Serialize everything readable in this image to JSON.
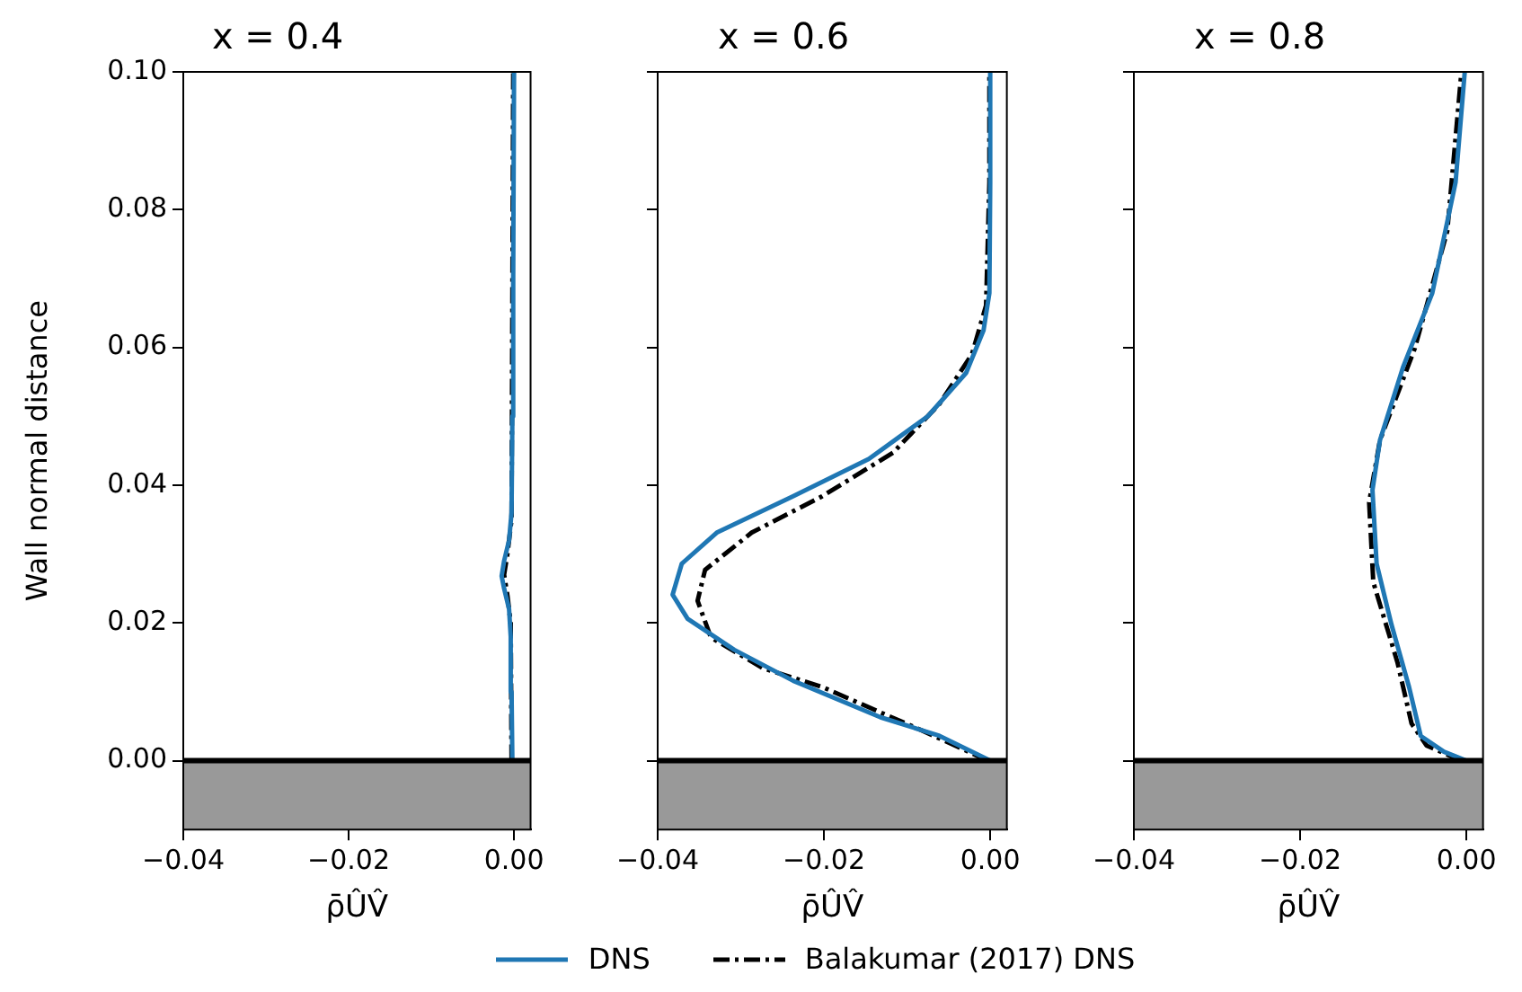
{
  "chart_data": [
    {
      "type": "line",
      "title": "x = 0.4",
      "xlabel": "ρ̄ÛV̂",
      "ylabel": "Wall normal distance",
      "xlim": [
        -0.04,
        0.002
      ],
      "ylim": [
        -0.01,
        0.1
      ],
      "xticks": [
        {
          "value": -0.04,
          "label": "−0.04"
        },
        {
          "value": -0.02,
          "label": "−0.02"
        },
        {
          "value": 0,
          "label": "0.00"
        }
      ],
      "yticks": [
        {
          "value": 0,
          "label": "0.00"
        },
        {
          "value": 0.02,
          "label": "0.02"
        },
        {
          "value": 0.04,
          "label": "0.04"
        },
        {
          "value": 0.06,
          "label": "0.06"
        },
        {
          "value": 0.08,
          "label": "0.08"
        },
        {
          "value": 0.1,
          "label": "0.10"
        }
      ],
      "grid": false,
      "legend": "bottom",
      "marker": "none",
      "bands": [
        {
          "axis": "y",
          "from": -0.01,
          "to": 0,
          "color": "#999999"
        }
      ],
      "ref_lines": [
        {
          "axis": "y",
          "value": 0,
          "color": "#000000"
        }
      ],
      "series": [
        {
          "name": "DNS",
          "color": "#1f77b4",
          "line_style": "solid",
          "x": [
            -0.0002,
            -0.0003,
            -0.0004,
            -0.0006,
            -0.0012,
            -0.0015,
            -0.0012,
            -0.0006,
            -0.0003,
            -0.0002,
            -0.0001,
            0
          ],
          "values": [
            0,
            0.01,
            0.018,
            0.022,
            0.025,
            0.0268,
            0.029,
            0.032,
            0.036,
            0.05,
            0.07,
            0.1
          ]
        },
        {
          "name": "Balakumar (2017) DNS",
          "color": "#000000",
          "line_style": "dashed",
          "x": [
            -0.0003,
            -0.0004,
            -0.0008,
            -0.0012,
            -0.0008,
            -0.0003,
            -0.0001
          ],
          "values": [
            0,
            0.02,
            0.024,
            0.027,
            0.03,
            0.035,
            0.1
          ]
        }
      ]
    },
    {
      "type": "line",
      "title": "x = 0.6",
      "xlabel": "ρ̄ÛV̂",
      "xlim": [
        -0.04,
        0.002
      ],
      "ylim": [
        -0.01,
        0.1
      ],
      "xticks": [
        {
          "value": -0.04,
          "label": "−0.04"
        },
        {
          "value": -0.02,
          "label": "−0.02"
        },
        {
          "value": 0,
          "label": "0.00"
        }
      ],
      "yticks": [
        {
          "value": 0,
          "label": null
        },
        {
          "value": 0.02,
          "label": null
        },
        {
          "value": 0.04,
          "label": null
        },
        {
          "value": 0.06,
          "label": null
        },
        {
          "value": 0.08,
          "label": null
        },
        {
          "value": 0.1,
          "label": null
        }
      ],
      "tick_labels": "x",
      "grid": false,
      "marker": "none",
      "bands": [
        {
          "axis": "y",
          "from": -0.01,
          "to": 0,
          "color": "#999999"
        }
      ],
      "ref_lines": [
        {
          "axis": "y",
          "value": 0,
          "color": "#000000"
        }
      ],
      "series": [
        {
          "color": "#1f77b4",
          "line_style": "solid",
          "x": [
            0,
            -0.0061,
            -0.0132,
            -0.0237,
            -0.0308,
            -0.0364,
            -0.0382,
            -0.0371,
            -0.0329,
            -0.0237,
            -0.0146,
            -0.0075,
            -0.0029,
            -0.0008,
            -0.0001,
            0,
            0
          ],
          "values": [
            0,
            0.0036,
            0.0063,
            0.0116,
            0.0161,
            0.0206,
            0.0241,
            0.0286,
            0.0331,
            0.0384,
            0.0438,
            0.05,
            0.0563,
            0.0625,
            0.0679,
            0.084,
            0.1
          ]
        },
        {
          "color": "#000000",
          "line_style": "dashed",
          "x": [
            -0.0003,
            -0.0075,
            -0.0202,
            -0.0273,
            -0.0336,
            -0.0352,
            -0.0343,
            -0.0287,
            -0.0202,
            -0.0117,
            -0.0061,
            -0.0022,
            -0.0005,
            -0.0001,
            -0.0001
          ],
          "values": [
            0,
            0.004,
            0.0107,
            0.0134,
            0.0179,
            0.0232,
            0.0277,
            0.0331,
            0.0384,
            0.0447,
            0.0518,
            0.059,
            0.0661,
            0.084,
            0.1
          ]
        }
      ]
    },
    {
      "type": "line",
      "title": "x = 0.8",
      "xlabel": "ρ̄ÛV̂",
      "xlim": [
        -0.04,
        0.002
      ],
      "ylim": [
        -0.01,
        0.1
      ],
      "xticks": [
        {
          "value": -0.04,
          "label": "−0.04"
        },
        {
          "value": -0.02,
          "label": "−0.02"
        },
        {
          "value": 0,
          "label": "0.00"
        }
      ],
      "yticks": [
        {
          "value": 0,
          "label": null
        },
        {
          "value": 0.02,
          "label": null
        },
        {
          "value": 0.04,
          "label": null
        },
        {
          "value": 0.06,
          "label": null
        },
        {
          "value": 0.08,
          "label": null
        },
        {
          "value": 0.1,
          "label": null
        }
      ],
      "tick_labels": "x",
      "grid": false,
      "marker": "none",
      "bands": [
        {
          "axis": "y",
          "from": -0.01,
          "to": 0,
          "color": "#999999"
        }
      ],
      "ref_lines": [
        {
          "axis": "y",
          "value": 0,
          "color": "#000000"
        }
      ],
      "series": [
        {
          "color": "#1f77b4",
          "line_style": "solid",
          "x": [
            0,
            -0.0027,
            -0.0055,
            -0.0069,
            -0.009,
            -0.0108,
            -0.0113,
            -0.0104,
            -0.0076,
            -0.0041,
            -0.0013,
            -0.0002
          ],
          "values": [
            0,
            0.0013,
            0.0036,
            0.0107,
            0.0197,
            0.0286,
            0.0393,
            0.0465,
            0.0572,
            0.0679,
            0.084,
            0.1
          ]
        },
        {
          "color": "#000000",
          "line_style": "dashed",
          "x": [
            -0.0006,
            -0.0048,
            -0.0066,
            -0.0083,
            -0.0112,
            -0.0117,
            -0.0104,
            -0.0062,
            -0.0023,
            -0.0006
          ],
          "values": [
            0,
            0.0022,
            0.0054,
            0.0143,
            0.0259,
            0.0375,
            0.0465,
            0.0599,
            0.0769,
            0.1
          ]
        }
      ]
    }
  ]
}
